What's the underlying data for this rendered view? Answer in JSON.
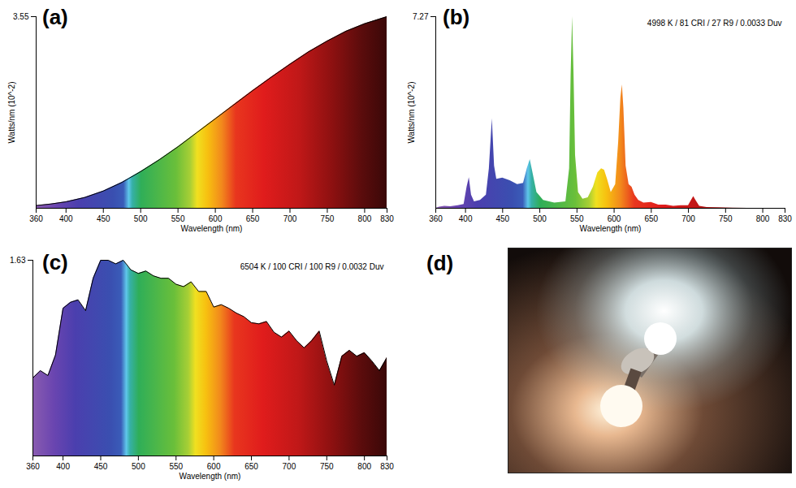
{
  "chart_data": [
    {
      "type": "area",
      "title": "(a)",
      "x_label": "Wavelength (nm)",
      "y_label": "Watts/nm (10^-2)",
      "x": [
        360,
        380,
        400,
        425,
        450,
        475,
        500,
        525,
        550,
        575,
        600,
        625,
        650,
        675,
        700,
        725,
        750,
        775,
        800,
        830
      ],
      "values": [
        0.05,
        0.08,
        0.12,
        0.2,
        0.32,
        0.48,
        0.68,
        0.9,
        1.14,
        1.4,
        1.66,
        1.92,
        2.18,
        2.43,
        2.67,
        2.9,
        3.1,
        3.28,
        3.42,
        3.55
      ],
      "xlim": [
        360,
        830
      ],
      "ylim": [
        0,
        3.55
      ],
      "xticks": [
        360,
        400,
        450,
        500,
        550,
        600,
        650,
        700,
        750,
        800,
        830
      ],
      "yticks": [
        3.55
      ],
      "line_style": "solid"
    },
    {
      "type": "area",
      "title": "(b)",
      "subtitle": "4998 K / 81 CRI / 27 R9 / 0.0033 Duv",
      "x_label": "Wavelength (nm)",
      "y_label": "Watts/nm (10^-2)",
      "x": [
        360,
        365,
        372,
        380,
        390,
        398,
        402,
        405,
        408,
        412,
        420,
        428,
        432,
        436,
        439,
        442,
        450,
        460,
        470,
        478,
        483,
        487,
        491,
        496,
        505,
        520,
        535,
        540,
        542,
        544,
        546,
        548,
        552,
        558,
        565,
        572,
        578,
        583,
        587,
        591,
        596,
        602,
        606,
        609,
        611,
        613,
        616,
        620,
        624,
        628,
        633,
        640,
        650,
        660,
        670,
        680,
        690,
        700,
        704,
        707,
        710,
        715,
        725,
        740,
        760,
        780,
        800,
        830
      ],
      "values": [
        0,
        0.05,
        0.08,
        0.06,
        0.1,
        0.15,
        0.8,
        1.16,
        0.5,
        0.25,
        0.3,
        0.5,
        1.5,
        3.4,
        1.6,
        1.1,
        1.15,
        1.05,
        0.9,
        0.95,
        1.5,
        1.85,
        1.3,
        0.6,
        0.3,
        0.2,
        0.25,
        1.5,
        5.0,
        7.27,
        5.0,
        2.0,
        0.6,
        0.35,
        0.4,
        0.8,
        1.35,
        1.5,
        1.45,
        1.1,
        0.6,
        0.9,
        2.5,
        4.2,
        4.68,
        3.8,
        1.6,
        0.9,
        0.8,
        0.5,
        0.3,
        0.2,
        0.22,
        0.12,
        0.12,
        0.08,
        0.1,
        0.1,
        0.3,
        0.45,
        0.3,
        0.08,
        0.03,
        0.02,
        0.01,
        0,
        0,
        0
      ],
      "xlim": [
        360,
        830
      ],
      "ylim": [
        0,
        7.27
      ],
      "xticks": [
        360,
        400,
        450,
        500,
        550,
        600,
        650,
        700,
        750,
        800,
        830
      ],
      "yticks": [
        7.27
      ]
    },
    {
      "type": "area",
      "title": "(c)",
      "subtitle": "6504 K / 100 CRI / 100 R9 / 0.0032 Duv",
      "x_label": "Wavelength (nm)",
      "x": [
        360,
        370,
        380,
        390,
        400,
        410,
        420,
        430,
        440,
        450,
        460,
        470,
        480,
        490,
        500,
        510,
        520,
        530,
        540,
        550,
        560,
        570,
        580,
        590,
        600,
        610,
        620,
        630,
        640,
        650,
        660,
        670,
        680,
        690,
        700,
        710,
        720,
        730,
        740,
        750,
        760,
        770,
        780,
        790,
        800,
        810,
        820,
        830
      ],
      "values": [
        0.65,
        0.71,
        0.67,
        0.84,
        1.23,
        1.28,
        1.3,
        1.21,
        1.48,
        1.63,
        1.63,
        1.6,
        1.63,
        1.55,
        1.52,
        1.54,
        1.5,
        1.48,
        1.48,
        1.43,
        1.41,
        1.45,
        1.37,
        1.37,
        1.24,
        1.26,
        1.23,
        1.19,
        1.16,
        1.11,
        1.1,
        1.12,
        1.03,
        0.99,
        1.04,
        0.96,
        0.9,
        0.96,
        1.04,
        0.79,
        0.59,
        0.83,
        0.88,
        0.83,
        0.86,
        0.79,
        0.71,
        0.82
      ],
      "xlim": [
        360,
        830
      ],
      "ylim": [
        0,
        1.63
      ],
      "xticks": [
        360,
        400,
        450,
        500,
        550,
        600,
        650,
        700,
        750,
        800,
        830
      ],
      "yticks": [
        1.63
      ],
      "line_style": "solid"
    },
    {
      "type": "photo",
      "title": "(d)"
    }
  ]
}
